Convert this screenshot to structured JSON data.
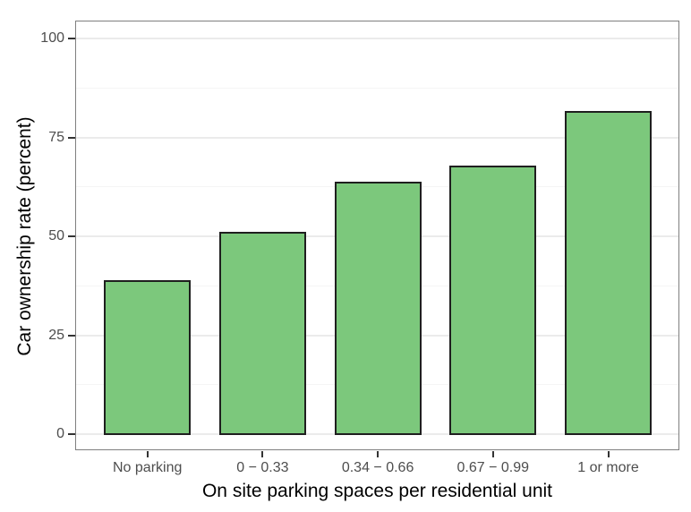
{
  "chart_data": {
    "type": "bar",
    "title": "",
    "categories": [
      "No parking",
      "0 − 0.33",
      "0.34 − 0.66",
      "0.67 − 0.99",
      "1 or more"
    ],
    "values": [
      38.7,
      50.9,
      63.6,
      67.7,
      81.4
    ],
    "xlabel": "On site parking spaces per residential unit",
    "ylabel": "Car ownership rate (percent)",
    "ylim": [
      0,
      100
    ],
    "yticks": [
      0,
      25,
      50,
      75,
      100
    ],
    "ytick_labels": [
      "0",
      "25",
      "50",
      "75",
      "100"
    ],
    "minor_gridlines": [
      12.5,
      37.5,
      62.5,
      87.5
    ],
    "grid": "horizontal major + minor, light gray on white panel",
    "legend": "none",
    "colors": {
      "background": "#ffffff",
      "bar_fill": "#7cc87c",
      "bar_border": "#1f1f1f",
      "grid_major": "#ebebeb",
      "grid_minor": "#f5f5f5",
      "panel_border": "#7f7f7f",
      "tick_mark": "#333333",
      "tick_label": "#4d4d4d",
      "axis_title": "#000000"
    }
  }
}
